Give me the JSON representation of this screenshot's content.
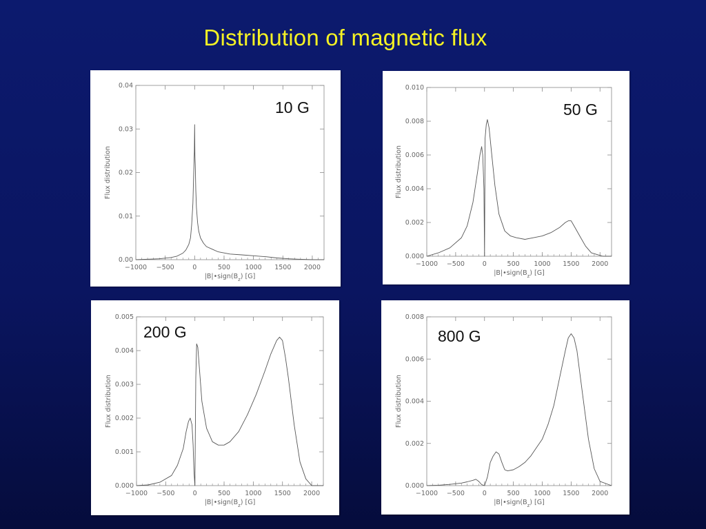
{
  "slide": {
    "title": "Distribution of magnetic flux"
  },
  "colors": {
    "background": "#0c1a6e",
    "title": "#f5f224",
    "panel": "#ffffff",
    "curve": "#555555",
    "axis": "#888888"
  },
  "chart_data": [
    {
      "type": "line",
      "label": "10 G",
      "xlabel": "|B|•sign(B_z) [G]",
      "ylabel": "Flux distribution",
      "xlim": [
        -1000,
        2200
      ],
      "ylim": [
        0,
        0.04
      ],
      "xticks": [
        -1000,
        -500,
        0,
        500,
        1000,
        1500,
        2000
      ],
      "xtick_labels": [
        "−1000",
        "−500",
        "0",
        "500",
        "1000",
        "1500",
        "2000"
      ],
      "yticks": [
        0,
        0.01,
        0.02,
        0.03,
        0.04
      ],
      "ytick_labels": [
        "0.00",
        "0.01",
        "0.02",
        "0.03",
        "0.04"
      ],
      "x": [
        -1000,
        -600,
        -400,
        -300,
        -200,
        -150,
        -100,
        -70,
        -50,
        -30,
        -15,
        -5,
        0,
        5,
        10,
        20,
        30,
        50,
        70,
        100,
        150,
        200,
        300,
        400,
        600,
        800,
        1000,
        1200,
        1400,
        1600,
        1800,
        2000,
        2200
      ],
      "y": [
        0.0,
        0.0002,
        0.0005,
        0.0008,
        0.0015,
        0.0022,
        0.0035,
        0.005,
        0.008,
        0.013,
        0.02,
        0.025,
        0.031,
        0.024,
        0.022,
        0.016,
        0.012,
        0.0085,
        0.0065,
        0.005,
        0.0038,
        0.003,
        0.0024,
        0.0018,
        0.0013,
        0.0011,
        0.0009,
        0.0007,
        0.0004,
        0.0002,
        0.0001,
        0.0,
        0.0
      ]
    },
    {
      "type": "line",
      "label": "50 G",
      "xlabel": "|B|•sign(B_z) [G]",
      "ylabel": "Flux distribution",
      "xlim": [
        -1000,
        2200
      ],
      "ylim": [
        0,
        0.01
      ],
      "xticks": [
        -1000,
        -500,
        0,
        500,
        1000,
        1500,
        2000
      ],
      "xtick_labels": [
        "−1000",
        "−500",
        "0",
        "500",
        "1000",
        "1500",
        "2000"
      ],
      "yticks": [
        0,
        0.002,
        0.004,
        0.006,
        0.008,
        0.01
      ],
      "ytick_labels": [
        "0.000",
        "0.002",
        "0.004",
        "0.006",
        "0.008",
        "0.010"
      ],
      "x": [
        -1000,
        -800,
        -600,
        -400,
        -300,
        -200,
        -120,
        -80,
        -50,
        -30,
        -10,
        0,
        10,
        30,
        50,
        80,
        120,
        180,
        250,
        350,
        450,
        550,
        700,
        850,
        1000,
        1150,
        1300,
        1400,
        1450,
        1500,
        1550,
        1650,
        1750,
        1850,
        1950,
        2050,
        2200
      ],
      "y": [
        0.0,
        0.0002,
        0.0005,
        0.0011,
        0.0018,
        0.0032,
        0.005,
        0.006,
        0.0065,
        0.006,
        0.004,
        0.0,
        0.007,
        0.0078,
        0.0081,
        0.0076,
        0.0062,
        0.0042,
        0.0025,
        0.0015,
        0.0012,
        0.0011,
        0.001,
        0.0011,
        0.0012,
        0.0014,
        0.0017,
        0.002,
        0.0021,
        0.0021,
        0.0018,
        0.0012,
        0.0006,
        0.0002,
        0.0001,
        0.0,
        0.0
      ]
    },
    {
      "type": "line",
      "label": "200 G",
      "xlabel": "|B|•sign(B_z) [G]",
      "ylabel": "Flux distribution",
      "xlim": [
        -1000,
        2200
      ],
      "ylim": [
        0,
        0.005
      ],
      "xticks": [
        -1000,
        -500,
        0,
        500,
        1000,
        1500,
        2000
      ],
      "xtick_labels": [
        "−1000",
        "−500",
        "0",
        "500",
        "1000",
        "1500",
        "2000"
      ],
      "yticks": [
        0,
        0.001,
        0.002,
        0.003,
        0.004,
        0.005
      ],
      "ytick_labels": [
        "0.000",
        "0.001",
        "0.002",
        "0.003",
        "0.004",
        "0.005"
      ],
      "x": [
        -1000,
        -800,
        -600,
        -400,
        -300,
        -200,
        -150,
        -110,
        -80,
        -50,
        -30,
        -15,
        0,
        15,
        30,
        50,
        80,
        120,
        200,
        300,
        400,
        500,
        600,
        750,
        900,
        1050,
        1200,
        1300,
        1400,
        1450,
        1500,
        1550,
        1600,
        1700,
        1800,
        1900,
        2000,
        2200
      ],
      "y": [
        0.0,
        2e-05,
        0.0001,
        0.0003,
        0.0006,
        0.0011,
        0.0016,
        0.0019,
        0.002,
        0.0018,
        0.0012,
        0.0004,
        0.0,
        0.0032,
        0.0042,
        0.0041,
        0.0034,
        0.0025,
        0.0017,
        0.0013,
        0.0012,
        0.0012,
        0.0013,
        0.0016,
        0.0021,
        0.0027,
        0.0034,
        0.0039,
        0.0043,
        0.0044,
        0.0043,
        0.0038,
        0.0032,
        0.0018,
        0.0007,
        0.0002,
        0.0,
        0.0
      ]
    },
    {
      "type": "line",
      "label": "800 G",
      "xlabel": "|B|•sign(B_z) [G]",
      "ylabel": "Flux distribution",
      "xlim": [
        -1000,
        2200
      ],
      "ylim": [
        0,
        0.008
      ],
      "xticks": [
        -1000,
        -500,
        0,
        500,
        1000,
        1500,
        2000
      ],
      "xtick_labels": [
        "−1000",
        "−500",
        "0",
        "500",
        "1000",
        "1500",
        "2000"
      ],
      "yticks": [
        0,
        0.002,
        0.004,
        0.006,
        0.008
      ],
      "ytick_labels": [
        "0.000",
        "0.002",
        "0.004",
        "0.006",
        "0.008"
      ],
      "x": [
        -1000,
        -800,
        -600,
        -400,
        -300,
        -200,
        -150,
        -100,
        -50,
        0,
        50,
        100,
        150,
        200,
        250,
        300,
        350,
        400,
        500,
        600,
        700,
        800,
        900,
        1000,
        1100,
        1200,
        1300,
        1400,
        1450,
        1500,
        1550,
        1600,
        1700,
        1800,
        1900,
        2000,
        2200
      ],
      "y": [
        0.0,
        2e-05,
        6e-05,
        0.00012,
        0.00018,
        0.00025,
        0.0003,
        0.0002,
        5e-05,
        0.0,
        0.0004,
        0.0011,
        0.0014,
        0.0016,
        0.0015,
        0.0011,
        0.00075,
        0.0007,
        0.00075,
        0.0009,
        0.0011,
        0.0014,
        0.0018,
        0.0022,
        0.0029,
        0.0038,
        0.0051,
        0.0064,
        0.007,
        0.0072,
        0.007,
        0.0064,
        0.0043,
        0.0022,
        0.0008,
        0.0002,
        0.0
      ]
    }
  ]
}
